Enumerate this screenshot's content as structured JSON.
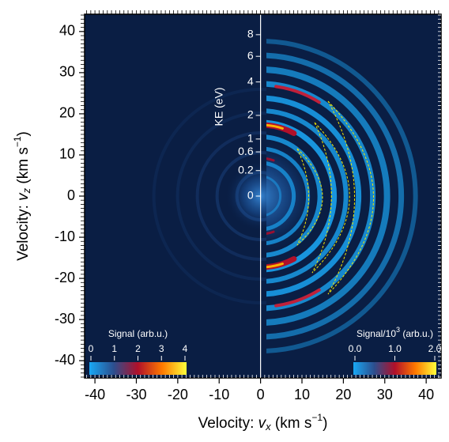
{
  "chart_data": {
    "type": "image",
    "xlabel": [
      "Velocity: ",
      "v",
      "x",
      " (km s",
      "−1",
      ")"
    ],
    "ylabel": [
      "Velocity: ",
      "v",
      "z",
      " (km s",
      "−1",
      ")"
    ],
    "xlim": [
      -42.5,
      43.6
    ],
    "ylim": [
      -44.2,
      44.2
    ],
    "xticks": [
      -40,
      -30,
      -20,
      -10,
      0,
      10,
      20,
      30,
      40
    ],
    "yticks": [
      -40,
      -30,
      -20,
      -10,
      0,
      10,
      20,
      30,
      40
    ],
    "background": "#0a1e44",
    "ke_axis": {
      "label": "KE (eV)",
      "ticks": [
        0,
        0.2,
        0.6,
        1,
        2,
        4,
        6,
        8
      ]
    },
    "colorbars": [
      {
        "label": [
          "Signal (arb.u.)"
        ],
        "clim": [
          0,
          4
        ],
        "ticks": [
          0,
          1,
          2,
          3,
          4
        ],
        "colors": [
          "#18a8f5",
          "#2c4f8f",
          "#b0102a",
          "#ff7a00",
          "#ffff3a"
        ]
      },
      {
        "label": [
          "Signal/10",
          "3",
          " (arb.u.)"
        ],
        "clim": [
          0,
          2
        ],
        "ticks": [
          {
            "value": 0,
            "label": "0.0"
          },
          {
            "value": 1,
            "label": "1.0"
          },
          {
            "value": 2,
            "label": "2.0"
          }
        ],
        "colors": [
          "#18a8f5",
          "#2c4f8f",
          "#b0102a",
          "#ff7a00",
          "#ffff3a"
        ]
      }
    ]
  }
}
